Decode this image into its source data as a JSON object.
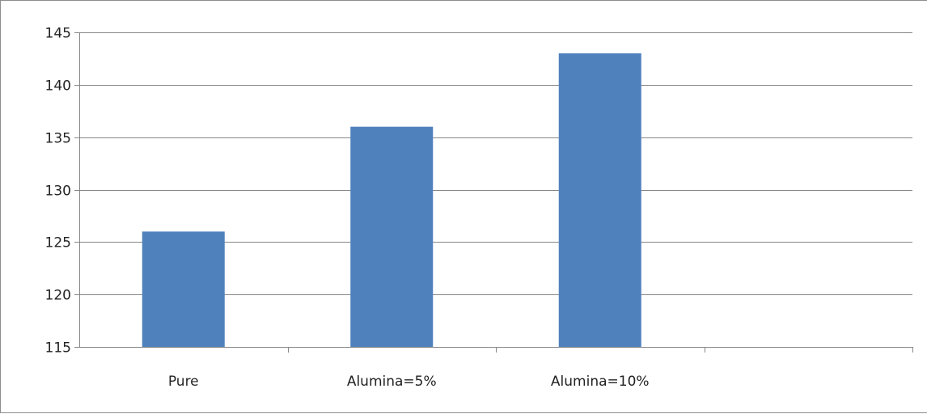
{
  "chart_data": {
    "type": "bar",
    "categories": [
      "Pure",
      "Alumina=5%",
      "Alumina=10%",
      ""
    ],
    "values": [
      126,
      136,
      143,
      null
    ],
    "title": "",
    "xlabel": "",
    "ylabel": "",
    "ylim": [
      115,
      145
    ],
    "yticks": [
      115,
      120,
      125,
      130,
      135,
      140,
      145
    ],
    "ytick_labels": [
      "115",
      "120",
      "125",
      "130",
      "135",
      "140",
      "145"
    ],
    "grid": "horizontal",
    "legend": "none",
    "bar_color": "#4f81bd",
    "grid_color": "#868686"
  }
}
